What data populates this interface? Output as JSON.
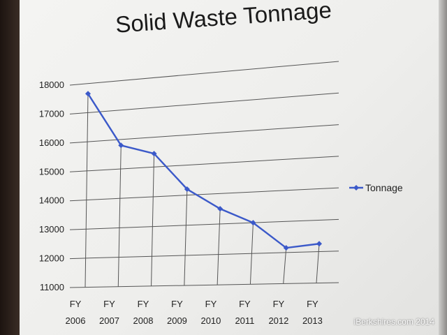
{
  "chart_data": {
    "type": "line",
    "title": "Solid Waste Tonnage",
    "xlabel": "",
    "ylabel": "",
    "categories": [
      [
        "FY",
        "2006"
      ],
      [
        "FY",
        "2007"
      ],
      [
        "FY",
        "2008"
      ],
      [
        "FY",
        "2009"
      ],
      [
        "FY",
        "2010"
      ],
      [
        "FY",
        "2011"
      ],
      [
        "FY",
        "2012"
      ],
      [
        "FY",
        "2013"
      ]
    ],
    "yticks": [
      "11000",
      "12000",
      "13000",
      "14000",
      "15000",
      "16000",
      "17000",
      "18000"
    ],
    "ylim": [
      11000,
      18000
    ],
    "grid": "horizontal",
    "legend_position": "right",
    "series": [
      {
        "name": "Tonnage",
        "color": "#3b59c9",
        "values": [
          17650,
          15800,
          15450,
          14200,
          13500,
          13000,
          12150,
          12250
        ]
      }
    ]
  },
  "watermark": "iBerkshires.com 2014"
}
